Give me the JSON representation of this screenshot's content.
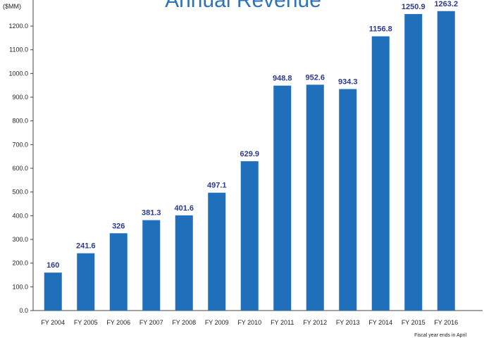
{
  "chart_data": {
    "type": "bar",
    "title": "Annual Revenue",
    "y_label": "($MM)",
    "note": "Fiscal year ends in April",
    "categories": [
      "FY 2004",
      "FY 2005",
      "FY 2006",
      "FY 2007",
      "FY 2008",
      "FY 2009",
      "FY 2010",
      "FY 2011",
      "FY 2012",
      "FY 2013",
      "FY 2014",
      "FY 2015",
      "FY 2016"
    ],
    "values": [
      160,
      241.6,
      326,
      381.3,
      401.6,
      497.1,
      629.9,
      948.8,
      952.6,
      934.3,
      1156.8,
      1250.9,
      1263.2
    ],
    "color": "#1f6fba",
    "ylim": [
      0,
      1310
    ],
    "yticks": [
      {
        "value": 0,
        "label": "0.0"
      },
      {
        "value": 100,
        "label": "100.0"
      },
      {
        "value": 200,
        "label": "200.0"
      },
      {
        "value": 300,
        "label": "300.0"
      },
      {
        "value": 400,
        "label": "400.0"
      },
      {
        "value": 500,
        "label": "500.0"
      },
      {
        "value": 600,
        "label": "600.0"
      },
      {
        "value": 700,
        "label": "700.0"
      },
      {
        "value": 800,
        "label": "800.0"
      },
      {
        "value": 900,
        "label": "900.0"
      },
      {
        "value": 1000,
        "label": "1000.0"
      },
      {
        "value": 1100,
        "label": "1100.0"
      },
      {
        "value": 1200,
        "label": "1200.0"
      }
    ],
    "grid": false
  }
}
